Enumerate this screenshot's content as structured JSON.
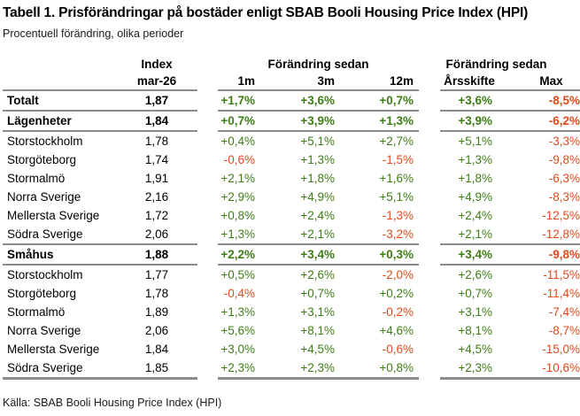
{
  "title": "Tabell 1. Prisförändringar på bostäder enligt SBAB Booli Housing Price Index (HPI)",
  "subtitle": "Procentuell förändring, olika perioder",
  "source": "Källa: SBAB Booli Housing Price Index (HPI)",
  "colors": {
    "positive": "#3e7d16",
    "negative": "#e04a1c",
    "rule": "#8c8c8c",
    "text": "#000000",
    "background": "#ffffff"
  },
  "table": {
    "header": {
      "index_label": "Index",
      "index_period": "mar-26",
      "group1_label": "Förändring sedan",
      "group2_label": "Förändring sedan",
      "cols1": [
        "1m",
        "3m",
        "12m"
      ],
      "cols2": [
        "Årsskifte",
        "Max"
      ]
    }
  },
  "chart_data": {
    "type": "table",
    "title": "Tabell 1. Prisförändringar på bostäder enligt SBAB Booli Housing Price Index (HPI)",
    "subtitle": "Procentuell förändring, olika perioder",
    "source": "Källa: SBAB Booli Housing Price Index (HPI)",
    "columns": [
      "",
      "Index mar-26",
      "1m",
      "3m",
      "12m",
      "Årsskifte",
      "Max"
    ],
    "column_groups": [
      {
        "label": "Förändring sedan",
        "span": [
          "1m",
          "3m",
          "12m"
        ]
      },
      {
        "label": "Förändring sedan",
        "span": [
          "Årsskifte",
          "Max"
        ]
      }
    ],
    "value_color_rule": "positive values green, negative values red",
    "rows": [
      {
        "label": "Totalt",
        "index": "1,87",
        "changes": [
          "+1,7%",
          "+3,6%",
          "+0,7%",
          "+3,6%",
          "-8,5%"
        ],
        "bold": true,
        "rule_below": true
      },
      {
        "label": "Lägenheter",
        "index": "1,84",
        "changes": [
          "+0,7%",
          "+3,9%",
          "+1,3%",
          "+3,9%",
          "-6,2%"
        ],
        "bold": true,
        "rule_below": true
      },
      {
        "label": "Storstockholm",
        "index": "1,78",
        "changes": [
          "+0,4%",
          "+5,1%",
          "+2,7%",
          "+5,1%",
          "-3,3%"
        ],
        "bold": false,
        "rule_below": false
      },
      {
        "label": "Storgöteborg",
        "index": "1,74",
        "changes": [
          "-0,6%",
          "+1,3%",
          "-1,5%",
          "+1,3%",
          "-9,8%"
        ],
        "bold": false,
        "rule_below": false
      },
      {
        "label": "Stormalmö",
        "index": "1,91",
        "changes": [
          "+2,1%",
          "+1,8%",
          "+1,6%",
          "+1,8%",
          "-6,3%"
        ],
        "bold": false,
        "rule_below": false
      },
      {
        "label": "Norra Sverige",
        "index": "2,16",
        "changes": [
          "+2,9%",
          "+4,9%",
          "+5,1%",
          "+4,9%",
          "-8,3%"
        ],
        "bold": false,
        "rule_below": false
      },
      {
        "label": "Mellersta Sverige",
        "index": "1,72",
        "changes": [
          "+0,8%",
          "+2,4%",
          "-1,3%",
          "+2,4%",
          "-12,5%"
        ],
        "bold": false,
        "rule_below": false
      },
      {
        "label": "Södra Sverige",
        "index": "2,06",
        "changes": [
          "+1,3%",
          "+2,1%",
          "-3,2%",
          "+2,1%",
          "-12,8%"
        ],
        "bold": false,
        "rule_below": true
      },
      {
        "label": "Småhus",
        "index": "1,88",
        "changes": [
          "+2,2%",
          "+3,4%",
          "+0,3%",
          "+3,4%",
          "-9,8%"
        ],
        "bold": true,
        "rule_below": true
      },
      {
        "label": "Storstockholm",
        "index": "1,77",
        "changes": [
          "+0,5%",
          "+2,6%",
          "-2,0%",
          "+2,6%",
          "-11,5%"
        ],
        "bold": false,
        "rule_below": false
      },
      {
        "label": "Storgöteborg",
        "index": "1,78",
        "changes": [
          "-0,4%",
          "+0,7%",
          "+0,2%",
          "+0,7%",
          "-11,4%"
        ],
        "bold": false,
        "rule_below": false
      },
      {
        "label": "Stormalmö",
        "index": "1,89",
        "changes": [
          "+1,3%",
          "+3,1%",
          "-0,2%",
          "+3,1%",
          "-7,4%"
        ],
        "bold": false,
        "rule_below": false
      },
      {
        "label": "Norra Sverige",
        "index": "2,06",
        "changes": [
          "+5,6%",
          "+8,1%",
          "+4,6%",
          "+8,1%",
          "-8,7%"
        ],
        "bold": false,
        "rule_below": false
      },
      {
        "label": "Mellersta Sverige",
        "index": "1,84",
        "changes": [
          "+3,0%",
          "+4,5%",
          "-0,6%",
          "+4,5%",
          "-15,0%"
        ],
        "bold": false,
        "rule_below": false
      },
      {
        "label": "Södra Sverige",
        "index": "1,85",
        "changes": [
          "+2,3%",
          "+2,3%",
          "+0,8%",
          "+2,3%",
          "-10,6%"
        ],
        "bold": false,
        "rule_below": true
      }
    ]
  }
}
